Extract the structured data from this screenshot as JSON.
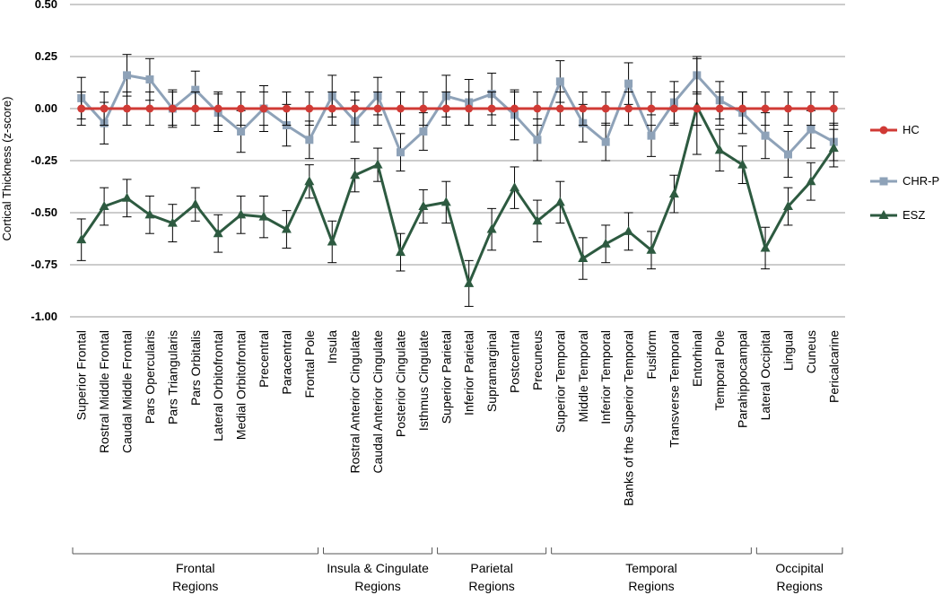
{
  "chart_data": {
    "type": "line",
    "ylabel": "Cortical Thickness (z-score)",
    "ylim": [
      -1.0,
      0.5
    ],
    "yticks": [
      "0.50",
      "0.25",
      "0.00",
      "-0.25",
      "-0.50",
      "-0.75",
      "-1.00"
    ],
    "ytick_values": [
      0.5,
      0.25,
      0.0,
      -0.25,
      -0.5,
      -0.75,
      -1.0
    ],
    "grid": true,
    "categories": [
      "Superior Frontal",
      "Rostral Middle Frontal",
      "Caudal Middle Frontal",
      "Pars Opercularis",
      "Pars Triangularis",
      "Pars Orbitalis",
      "Lateral Orbitofrontal",
      "Medial Orbitofrontal",
      "Precentral",
      "Paracentral",
      "Frontal Pole",
      "Insula",
      "Rostral Anterior Cingulate",
      "Caudal Anterior Cingulate",
      "Posterior Cingulate",
      "Isthmus Cingulate",
      "Superior Parietal",
      "Inferior Parietal",
      "Supramarginal",
      "Postcentral",
      "Precuneus",
      "Superior Temporal",
      "Middle Temporal",
      "Inferior Temporal",
      "Banks of the Superior Temporal",
      "Fusiform",
      "Transverse Temporal",
      "Entorhinal",
      "Temporal Pole",
      "Parahippocampal",
      "Lateral Occipital",
      "Lingual",
      "Cuneus",
      "Pericalcarine"
    ],
    "series": [
      {
        "name": "HC",
        "color": "#d03a35",
        "marker": "circle",
        "values": [
          0,
          0,
          0,
          0,
          0,
          0,
          0,
          0,
          0,
          0,
          0,
          0,
          0,
          0,
          0,
          0,
          0,
          0,
          0,
          0,
          0,
          0,
          0,
          0,
          0,
          0,
          0,
          0,
          0,
          0,
          0,
          0,
          0,
          0
        ],
        "errors": [
          0.08,
          0.08,
          0.08,
          0.08,
          0.08,
          0.08,
          0.08,
          0.08,
          0.08,
          0.08,
          0.08,
          0.08,
          0.08,
          0.08,
          0.08,
          0.08,
          0.08,
          0.08,
          0.08,
          0.08,
          0.08,
          0.08,
          0.08,
          0.08,
          0.08,
          0.08,
          0.08,
          0.08,
          0.08,
          0.08,
          0.08,
          0.08,
          0.08,
          0.08
        ]
      },
      {
        "name": "CHR-P",
        "color": "#8ea2b8",
        "marker": "square",
        "values": [
          0.05,
          -0.07,
          0.16,
          0.14,
          0.0,
          0.09,
          -0.02,
          -0.11,
          0.0,
          -0.08,
          -0.15,
          0.06,
          -0.06,
          0.06,
          -0.21,
          -0.11,
          0.06,
          0.03,
          0.07,
          -0.03,
          -0.15,
          0.13,
          -0.07,
          -0.16,
          0.12,
          -0.13,
          0.03,
          0.16,
          0.04,
          -0.02,
          -0.13,
          -0.22,
          -0.1,
          -0.16
        ],
        "errors": [
          0.1,
          0.1,
          0.1,
          0.1,
          0.09,
          0.09,
          0.09,
          0.1,
          0.11,
          0.1,
          0.09,
          0.1,
          0.1,
          0.09,
          0.09,
          0.09,
          0.1,
          0.11,
          0.1,
          0.12,
          0.1,
          0.1,
          0.09,
          0.09,
          0.1,
          0.1,
          0.1,
          0.09,
          0.09,
          0.1,
          0.11,
          0.11,
          0.09,
          0.09
        ]
      },
      {
        "name": "ESZ",
        "color": "#2d5a40",
        "marker": "triangle",
        "values": [
          -0.63,
          -0.47,
          -0.43,
          -0.51,
          -0.55,
          -0.46,
          -0.6,
          -0.51,
          -0.52,
          -0.58,
          -0.35,
          -0.64,
          -0.32,
          -0.27,
          -0.69,
          -0.47,
          -0.45,
          -0.84,
          -0.58,
          -0.38,
          -0.54,
          -0.45,
          -0.72,
          -0.65,
          -0.59,
          -0.68,
          -0.41,
          0.01,
          -0.2,
          -0.27,
          -0.67,
          -0.47,
          -0.35,
          -0.19
        ],
        "errors": [
          0.1,
          0.09,
          0.09,
          0.09,
          0.09,
          0.08,
          0.09,
          0.09,
          0.1,
          0.09,
          0.08,
          0.1,
          0.08,
          0.08,
          0.09,
          0.08,
          0.1,
          0.11,
          0.1,
          0.1,
          0.1,
          0.1,
          0.1,
          0.09,
          0.09,
          0.09,
          0.09,
          0.23,
          0.1,
          0.09,
          0.1,
          0.09,
          0.09,
          0.09
        ]
      }
    ],
    "legend_position": "right",
    "groups": [
      {
        "line1": "Frontal",
        "line2": "Regions",
        "start": 0,
        "end": 10
      },
      {
        "line1": "Insula & Cingulate",
        "line2": "Regions",
        "start": 11,
        "end": 15
      },
      {
        "line1": "Parietal",
        "line2": "Regions",
        "start": 16,
        "end": 20
      },
      {
        "line1": "Temporal",
        "line2": "Regions",
        "start": 21,
        "end": 29
      },
      {
        "line1": "Occipital",
        "line2": "Regions",
        "start": 30,
        "end": 33
      }
    ]
  }
}
